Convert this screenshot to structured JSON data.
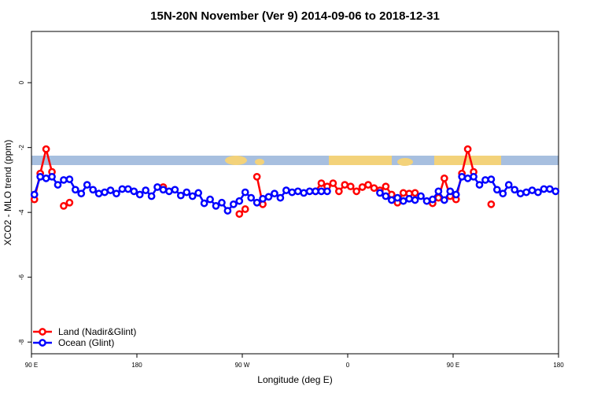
{
  "chart_data": {
    "type": "line",
    "title": "15N-20N November (Ver 9)   2014-09-06 to 2018-12-31",
    "x_label": "Longitude (deg E)",
    "y_label": "XCO2 - MLO trend (ppm)",
    "xlim": [
      90,
      540
    ],
    "ylim": [
      -8.36,
      1.58
    ],
    "xticks": [
      {
        "value": 90,
        "label": "90 E"
      },
      180,
      {
        "value": 270,
        "label": "90 W"
      },
      0,
      {
        "value": 450,
        "label": "90 E"
      },
      {
        "value": 540,
        "label": "180"
      }
    ],
    "yticks": [
      0,
      -2,
      -4,
      -6,
      -8
    ],
    "legend": "bottom-left",
    "x": [
      92.5,
      97.5,
      102.5,
      107.5,
      112.5,
      117.5,
      122.5,
      127.5,
      132.5,
      137.5,
      142.5,
      147.5,
      152.5,
      157.5,
      162.5,
      167.5,
      172.5,
      177.5,
      182.5,
      187.5,
      192.5,
      197.5,
      202.5,
      207.5,
      212.5,
      217.5,
      222.5,
      227.5,
      232.5,
      237.5,
      242.5,
      247.5,
      252.5,
      257.5,
      262.5,
      267.5,
      272.5,
      277.5,
      282.5,
      287.5,
      292.5,
      297.5,
      302.5,
      307.5,
      312.5,
      317.5,
      322.5,
      327.5,
      332.5,
      337.5,
      342.5,
      347.5,
      352.5,
      357.5,
      362.5,
      367.5,
      372.5,
      377.5,
      382.5,
      387.5,
      392.5,
      397.5,
      402.5,
      407.5,
      412.5,
      417.5,
      422.5,
      427.5,
      432.5,
      437.5,
      442.5,
      447.5,
      452.5,
      457.5,
      462.5,
      467.5,
      472.5,
      477.5,
      482.5,
      487.5,
      492.5,
      497.5,
      502.5,
      507.5,
      512.5,
      517.5,
      522.5,
      527.5,
      532.5,
      537.5
    ],
    "series": [
      {
        "name": "Land (Nadir&Glint)",
        "color": "#ff0000",
        "values": [
          -3.6,
          -2.8,
          -2.05,
          -2.75,
          null,
          -3.8,
          -3.7,
          null,
          null,
          null,
          null,
          null,
          null,
          null,
          null,
          null,
          null,
          null,
          null,
          null,
          null,
          null,
          -3.22,
          null,
          null,
          null,
          null,
          null,
          null,
          null,
          null,
          null,
          null,
          null,
          null,
          -4.05,
          -3.9,
          null,
          -2.9,
          -3.75,
          null,
          null,
          null,
          null,
          null,
          null,
          null,
          null,
          -3.35,
          -3.1,
          -3.2,
          -3.1,
          -3.35,
          -3.15,
          -3.2,
          -3.35,
          -3.22,
          -3.15,
          -3.25,
          -3.32,
          -3.2,
          -3.45,
          -3.7,
          -3.4,
          -3.42,
          -3.4,
          null,
          null,
          -3.72,
          -3.55,
          -2.95,
          -3.5,
          -3.6,
          -2.8,
          -2.05,
          -2.75,
          null,
          null,
          -3.75,
          null,
          null,
          null,
          null,
          null,
          null,
          null,
          null,
          null,
          null,
          null
        ]
      },
      {
        "name": "Ocean (Glint)",
        "color": "#0000ff",
        "values": [
          -3.45,
          -2.9,
          -2.95,
          -2.9,
          -3.15,
          -3.0,
          -2.98,
          -3.3,
          -3.42,
          -3.15,
          -3.3,
          -3.42,
          -3.38,
          -3.32,
          -3.42,
          -3.28,
          -3.28,
          -3.35,
          -3.45,
          -3.32,
          -3.5,
          -3.22,
          -3.3,
          -3.35,
          -3.3,
          -3.48,
          -3.38,
          -3.5,
          -3.4,
          -3.72,
          -3.6,
          -3.8,
          -3.7,
          -3.95,
          -3.75,
          -3.65,
          -3.38,
          -3.55,
          -3.7,
          -3.58,
          -3.52,
          -3.42,
          -3.55,
          -3.32,
          -3.38,
          -3.35,
          -3.4,
          -3.35,
          -3.35,
          -3.35,
          -3.35,
          null,
          null,
          null,
          null,
          null,
          null,
          null,
          null,
          -3.4,
          -3.5,
          -3.62,
          -3.55,
          -3.65,
          -3.58,
          -3.62,
          -3.5,
          -3.65,
          -3.6,
          -3.35,
          -3.62,
          -3.35,
          -3.45,
          -2.9,
          -2.95,
          -2.9,
          -3.15,
          -3.0,
          -2.98,
          -3.3,
          -3.42,
          -3.15,
          -3.3,
          -3.42,
          -3.38,
          -3.32,
          -3.38,
          -3.28,
          -3.28,
          -3.35
        ]
      }
    ]
  }
}
